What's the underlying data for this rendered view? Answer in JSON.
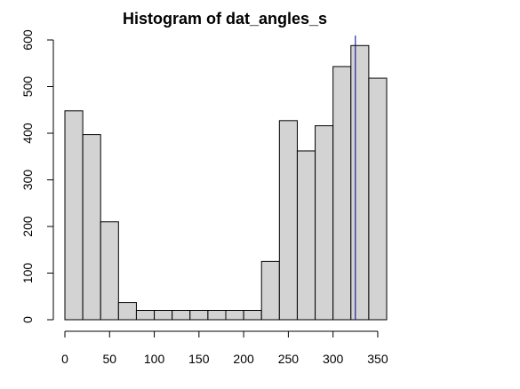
{
  "chart_data": {
    "type": "bar",
    "title": "Histogram of dat_angles_s",
    "xlabel": "",
    "ylabel": "",
    "xlim": [
      0,
      360
    ],
    "ylim": [
      0,
      600
    ],
    "x_ticks": [
      0,
      50,
      100,
      150,
      200,
      250,
      300,
      350
    ],
    "y_ticks": [
      0,
      100,
      200,
      300,
      400,
      500,
      600
    ],
    "bins": [
      {
        "start": 0,
        "end": 20,
        "count": 448
      },
      {
        "start": 20,
        "end": 40,
        "count": 397
      },
      {
        "start": 40,
        "end": 60,
        "count": 210
      },
      {
        "start": 60,
        "end": 80,
        "count": 37
      },
      {
        "start": 80,
        "end": 100,
        "count": 20
      },
      {
        "start": 100,
        "end": 120,
        "count": 20
      },
      {
        "start": 120,
        "end": 140,
        "count": 20
      },
      {
        "start": 140,
        "end": 160,
        "count": 20
      },
      {
        "start": 160,
        "end": 180,
        "count": 20
      },
      {
        "start": 180,
        "end": 200,
        "count": 20
      },
      {
        "start": 200,
        "end": 220,
        "count": 20
      },
      {
        "start": 220,
        "end": 240,
        "count": 125
      },
      {
        "start": 240,
        "end": 260,
        "count": 427
      },
      {
        "start": 260,
        "end": 280,
        "count": 362
      },
      {
        "start": 280,
        "end": 300,
        "count": 416
      },
      {
        "start": 300,
        "end": 320,
        "count": 543
      },
      {
        "start": 320,
        "end": 340,
        "count": 588
      },
      {
        "start": 340,
        "end": 360,
        "count": 518
      }
    ],
    "reference_line_x": 325,
    "colors": {
      "bar_fill": "#d3d3d3",
      "bar_stroke": "#000000",
      "reference_line": "#00008b",
      "axis": "#000000"
    },
    "grid": false
  }
}
